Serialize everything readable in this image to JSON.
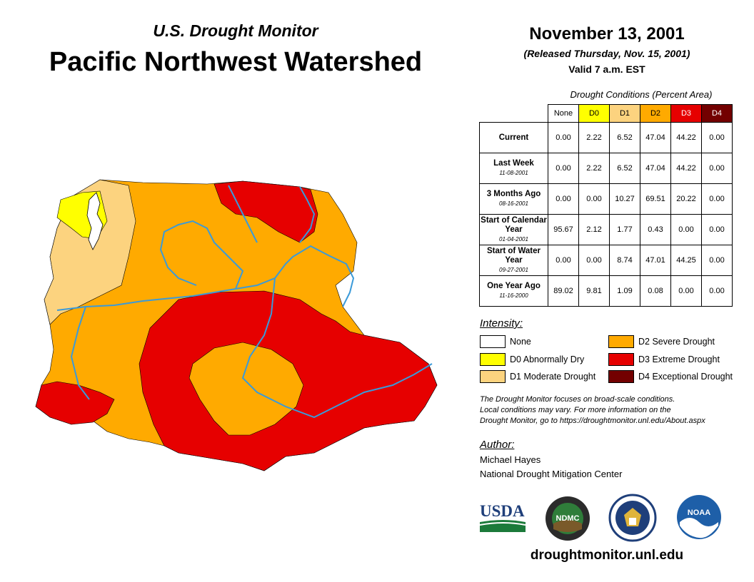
{
  "header": {
    "subtitle": "U.S. Drought Monitor",
    "title": "Pacific Northwest Watershed",
    "date": "November 13, 2001",
    "released": "(Released Thursday, Nov. 15, 2001)",
    "valid": "Valid 7 a.m. EST"
  },
  "table": {
    "title": "Drought Conditions (Percent Area)",
    "columns": [
      "None",
      "D0",
      "D1",
      "D2",
      "D3",
      "D4"
    ],
    "column_colors": [
      "#ffffff",
      "#ffff00",
      "#fcd37f",
      "#ffaa00",
      "#e60000",
      "#730000"
    ],
    "rows": [
      {
        "label": "Current",
        "date": "",
        "values": [
          "0.00",
          "2.22",
          "6.52",
          "47.04",
          "44.22",
          "0.00"
        ]
      },
      {
        "label": "Last Week",
        "date": "11-08-2001",
        "values": [
          "0.00",
          "2.22",
          "6.52",
          "47.04",
          "44.22",
          "0.00"
        ]
      },
      {
        "label": "3 Months Ago",
        "date": "08-16-2001",
        "values": [
          "0.00",
          "0.00",
          "10.27",
          "69.51",
          "20.22",
          "0.00"
        ]
      },
      {
        "label": "Start of Calendar Year",
        "date": "01-04-2001",
        "values": [
          "95.67",
          "2.12",
          "1.77",
          "0.43",
          "0.00",
          "0.00"
        ]
      },
      {
        "label": "Start of Water Year",
        "date": "09-27-2001",
        "values": [
          "0.00",
          "0.00",
          "8.74",
          "47.01",
          "44.25",
          "0.00"
        ]
      },
      {
        "label": "One Year Ago",
        "date": "11-16-2000",
        "values": [
          "89.02",
          "9.81",
          "1.09",
          "0.08",
          "0.00",
          "0.00"
        ]
      }
    ]
  },
  "legend": {
    "title": "Intensity:",
    "items": [
      {
        "label": "None",
        "color": "#ffffff"
      },
      {
        "label": "D0 Abnormally Dry",
        "color": "#ffff00"
      },
      {
        "label": "D1 Moderate Drought",
        "color": "#fcd37f"
      },
      {
        "label": "D2 Severe Drought",
        "color": "#ffaa00"
      },
      {
        "label": "D3 Extreme Drought",
        "color": "#e60000"
      },
      {
        "label": "D4 Exceptional Drought",
        "color": "#730000"
      }
    ]
  },
  "note": {
    "line1": "The Drought Monitor focuses on broad-scale conditions.",
    "line2": "Local conditions may vary. For more information on the",
    "line3": "Drought Monitor, go to https://droughtmonitor.unl.edu/About.aspx"
  },
  "author": {
    "title": "Author:",
    "name": "Michael Hayes",
    "org": "National Drought Mitigation Center"
  },
  "logos": {
    "usda": "USDA",
    "ndmc": "NDMC",
    "noaa": "NOAA"
  },
  "footer": {
    "url": "droughtmonitor.unl.edu"
  }
}
